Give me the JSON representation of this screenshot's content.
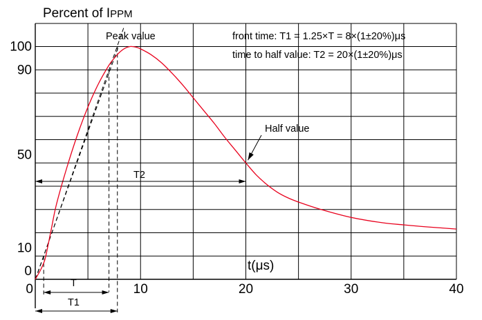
{
  "chart_data": {
    "type": "line",
    "title": {
      "main": "Percent of I",
      "sub": "PPM"
    },
    "xlabel": "t(μs)",
    "ylabel": "",
    "xlim": [
      0,
      40
    ],
    "ylim": [
      0,
      100
    ],
    "x_ticks": [
      0,
      10,
      20,
      30,
      40
    ],
    "y_ticks": [
      0,
      10,
      50,
      90,
      100
    ],
    "grid": true,
    "series": [
      {
        "color": "#e8001c",
        "x": [
          0,
          0.5,
          0.8,
          1,
          1.5,
          2,
          3,
          4,
          5,
          6,
          7,
          7.5,
          8,
          8.5,
          9,
          9.5,
          10,
          11,
          12,
          13,
          14,
          15,
          16,
          17,
          18,
          19,
          20,
          21,
          22,
          23,
          24,
          25,
          27,
          30,
          33,
          35,
          37,
          40
        ],
        "y": [
          0,
          4,
          7,
          10,
          21,
          32,
          48,
          62,
          74,
          84,
          92,
          95,
          97.5,
          99.2,
          100,
          99.8,
          99,
          96.5,
          93,
          88.5,
          83.5,
          78,
          72.5,
          67,
          61,
          55.5,
          50,
          44.8,
          40.7,
          37.4,
          35,
          33.2,
          30.2,
          26.6,
          24.3,
          23.4,
          22.6,
          21.6
        ]
      }
    ],
    "annotations": {
      "peak": "Peak value",
      "half": "Half value",
      "front_time": "front time: T1 = 1.25×T = 8×(1±20%)μs",
      "half_time": "time to half value: T2 = 20×(1±20%)μs",
      "t2": "T2",
      "t": "T",
      "t1": "T1"
    },
    "markers": {
      "t10_x": 0.8,
      "t90_x": 7.0,
      "t_half_x": 20,
      "t1_start_x": 0.2,
      "t1_end_x": 7.8
    },
    "colors": {
      "curve": "#e8001c",
      "axis": "#000000",
      "grid": "#000000"
    }
  }
}
